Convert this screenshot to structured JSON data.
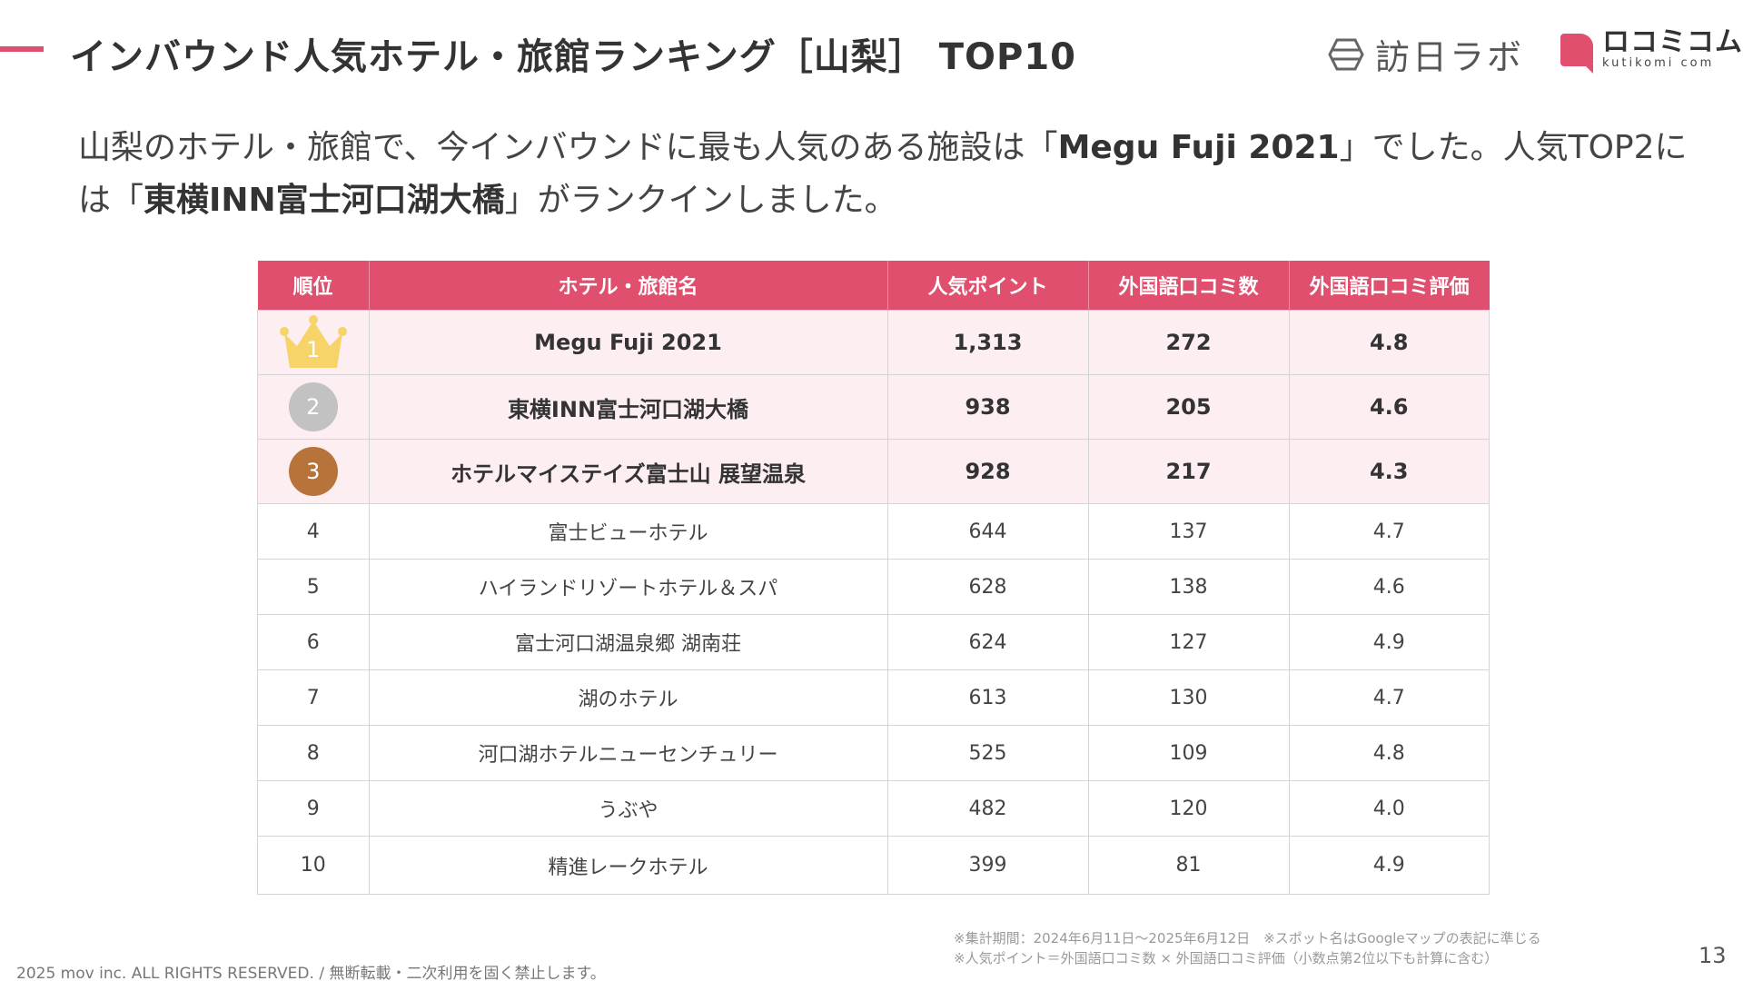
{
  "header": {
    "title": "インバウンド人気ホテル・旅館ランキング［山梨］ TOP10",
    "logo_houjin": "訪日ラボ",
    "logo_kuchikomi_ja": "ロコミコム",
    "logo_kuchikomi_en": "kutikomi com"
  },
  "lead": {
    "part1": "山梨のホテル・旅館で、今インバウンドに最も人気のある施設は「",
    "top1": "Megu Fuji 2021",
    "part2": "」でした。人気TOP2には「",
    "top2": "東横INN富士河口湖大橋",
    "part3": "」がランクインしました。"
  },
  "table": {
    "headers": [
      "順位",
      "ホテル・旅館名",
      "人気ポイント",
      "外国語口コミ数",
      "外国語口コミ評価"
    ],
    "rows": [
      {
        "rank": "1",
        "name": "Megu Fuji 2021",
        "points": "1,313",
        "count": "272",
        "rating": "4.8"
      },
      {
        "rank": "2",
        "name": "東横INN富士河口湖大橋",
        "points": "938",
        "count": "205",
        "rating": "4.6"
      },
      {
        "rank": "3",
        "name": "ホテルマイステイズ富士山 展望温泉",
        "points": "928",
        "count": "217",
        "rating": "4.3"
      },
      {
        "rank": "4",
        "name": "富士ビューホテル",
        "points": "644",
        "count": "137",
        "rating": "4.7"
      },
      {
        "rank": "5",
        "name": "ハイランドリゾートホテル＆スパ",
        "points": "628",
        "count": "138",
        "rating": "4.6"
      },
      {
        "rank": "6",
        "name": "富士河口湖温泉郷 湖南荘",
        "points": "624",
        "count": "127",
        "rating": "4.9"
      },
      {
        "rank": "7",
        "name": "湖のホテル",
        "points": "613",
        "count": "130",
        "rating": "4.7"
      },
      {
        "rank": "8",
        "name": "河口湖ホテルニューセンチュリー",
        "points": "525",
        "count": "109",
        "rating": "4.8"
      },
      {
        "rank": "9",
        "name": "うぶや",
        "points": "482",
        "count": "120",
        "rating": "4.0"
      },
      {
        "rank": "10",
        "name": "精進レークホテル",
        "points": "399",
        "count": "81",
        "rating": "4.9"
      }
    ]
  },
  "notes": {
    "line1": "※集計期間：2024年6月11日〜2025年6月12日　※スポット名はGoogleマップの表記に準じる",
    "line2": "※人気ポイント＝外国語口コミ数 × 外国語口コミ評価（小数点第2位以下も計算に含む）"
  },
  "footer": {
    "copyright": "2025 mov inc. ALL RIGHTS RESERVED. / 無断転載・二次利用を固く禁止します。",
    "page_number": "13"
  },
  "colors": {
    "accent": "#e0506e",
    "top_row_bg": "#fdeef2",
    "gold": "#f6d46a",
    "silver": "#c2c2c2",
    "bronze": "#b8733a"
  }
}
